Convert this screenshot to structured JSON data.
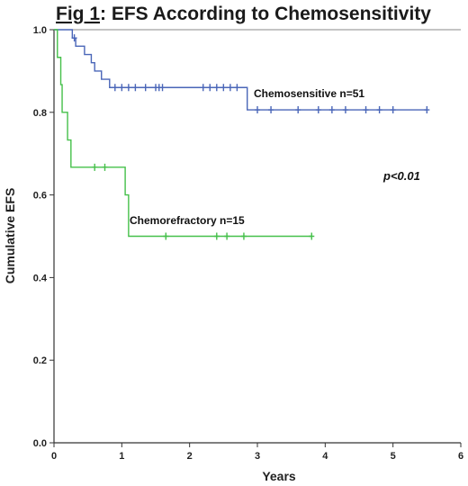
{
  "chart_data": {
    "type": "line",
    "step": true,
    "title_prefix": "Fig 1",
    "title_rest": ": EFS According to Chemosensitivity",
    "xlabel": "Years",
    "ylabel": "Cumulative EFS",
    "xlim": [
      0,
      6
    ],
    "ylim": [
      0.0,
      1.0
    ],
    "xticks": [
      "0",
      "1",
      "2",
      "3",
      "4",
      "5",
      "6"
    ],
    "yticks": [
      "0.0",
      "0.2",
      "0.4",
      "0.6",
      "0.8",
      "1.0"
    ],
    "grid": false,
    "annotation": "p<0.01",
    "colors": {
      "chemosensitive": "#4a66b8",
      "chemorefractory": "#45c04a",
      "axis": "#333333"
    },
    "series": [
      {
        "name": "Chemosensitive n=51",
        "key": "chemosensitive",
        "steps": [
          [
            0,
            1.0
          ],
          [
            0.27,
            0.98
          ],
          [
            0.32,
            0.96
          ],
          [
            0.45,
            0.94
          ],
          [
            0.55,
            0.92
          ],
          [
            0.6,
            0.9
          ],
          [
            0.7,
            0.88
          ],
          [
            0.82,
            0.86
          ],
          [
            2.85,
            0.806
          ]
        ],
        "end_x": 5.5,
        "censored": [
          [
            0.3,
            0.98
          ],
          [
            0.9,
            0.86
          ],
          [
            1.0,
            0.86
          ],
          [
            1.1,
            0.86
          ],
          [
            1.2,
            0.86
          ],
          [
            1.35,
            0.86
          ],
          [
            1.5,
            0.86
          ],
          [
            1.55,
            0.86
          ],
          [
            1.6,
            0.86
          ],
          [
            2.2,
            0.86
          ],
          [
            2.3,
            0.86
          ],
          [
            2.4,
            0.86
          ],
          [
            2.5,
            0.86
          ],
          [
            2.6,
            0.86
          ],
          [
            2.7,
            0.86
          ],
          [
            3.0,
            0.806
          ],
          [
            3.2,
            0.806
          ],
          [
            3.6,
            0.806
          ],
          [
            3.9,
            0.806
          ],
          [
            4.1,
            0.806
          ],
          [
            4.3,
            0.806
          ],
          [
            4.6,
            0.806
          ],
          [
            4.8,
            0.806
          ],
          [
            5.0,
            0.806
          ],
          [
            5.5,
            0.806
          ]
        ]
      },
      {
        "name": "Chemorefractory n=15",
        "key": "chemorefractory",
        "steps": [
          [
            0,
            1.0
          ],
          [
            0.05,
            0.933
          ],
          [
            0.1,
            0.867
          ],
          [
            0.12,
            0.8
          ],
          [
            0.2,
            0.733
          ],
          [
            0.25,
            0.667
          ],
          [
            1.05,
            0.6
          ],
          [
            1.1,
            0.5
          ]
        ],
        "end_x": 3.8,
        "censored": [
          [
            0.6,
            0.667
          ],
          [
            0.75,
            0.667
          ],
          [
            1.65,
            0.5
          ],
          [
            2.4,
            0.5
          ],
          [
            2.55,
            0.5
          ],
          [
            2.8,
            0.5
          ],
          [
            3.8,
            0.5
          ]
        ]
      }
    ]
  }
}
